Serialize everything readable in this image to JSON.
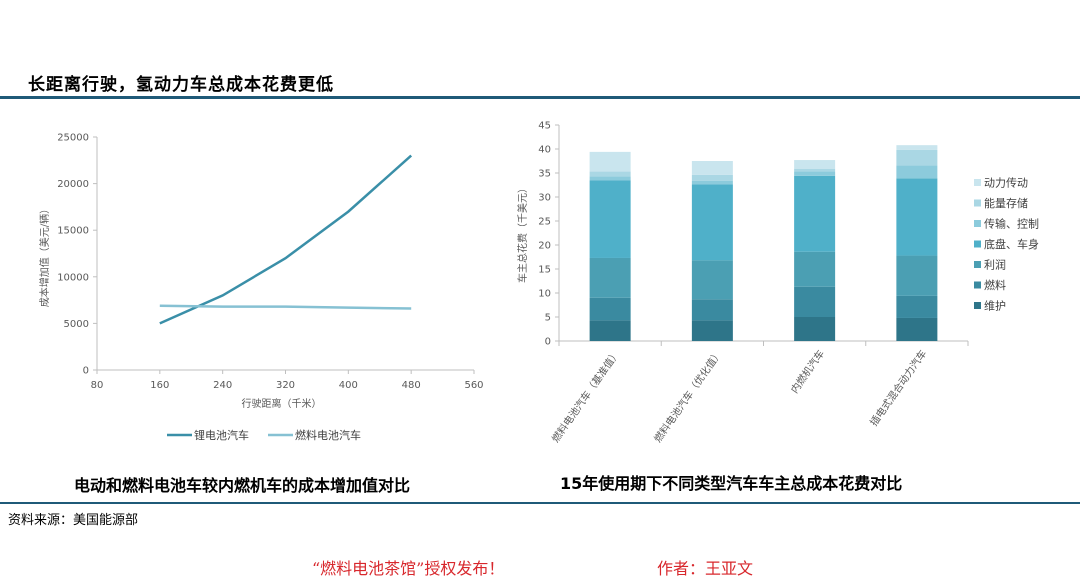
{
  "heading": "长距离行驶，氢动力车总成本花费更低",
  "source": "资料来源：美国能源部",
  "footer": {
    "left": "“燃料电池茶馆”授权发布！",
    "right": "作者：王亚文"
  },
  "chart_data": [
    {
      "type": "line",
      "caption": "电动和燃料电池车较内燃机车的成本增加值对比",
      "xlabel": "行驶距离（千米）",
      "ylabel": "成本增加值（美元/辆）",
      "xlim": [
        80,
        560
      ],
      "ylim": [
        0,
        25000
      ],
      "xticks": [
        80,
        160,
        240,
        320,
        400,
        480,
        560
      ],
      "yticks": [
        0,
        5000,
        10000,
        15000,
        20000,
        25000
      ],
      "grid": false,
      "legend_position": "bottom",
      "series": [
        {
          "name": "锂电池汽车",
          "color": "#3a8fa8",
          "points": [
            [
              160,
              5000
            ],
            [
              240,
              8000
            ],
            [
              320,
              12000
            ],
            [
              400,
              17000
            ],
            [
              480,
              23000
            ]
          ]
        },
        {
          "name": "燃料电池汽车",
          "color": "#86c1d3",
          "points": [
            [
              160,
              6900
            ],
            [
              240,
              6800
            ],
            [
              320,
              6800
            ],
            [
              400,
              6700
            ],
            [
              480,
              6600
            ]
          ]
        }
      ]
    },
    {
      "type": "bar",
      "stacked": true,
      "caption": "15年使用期下不同类型汽车车主总成本花费对比",
      "ylabel": "车主总花费（千美元）",
      "ylim": [
        0,
        45
      ],
      "yticks": [
        0,
        5,
        10,
        15,
        20,
        25,
        30,
        35,
        40,
        45
      ],
      "grid": false,
      "legend_position": "right",
      "categories": [
        "燃料电池汽车（基准值）",
        "燃料电池汽车（优化值）",
        "内燃机汽车",
        "插电式混合动力汽车"
      ],
      "series": [
        {
          "name": "维护",
          "color": "#2e7589",
          "values": [
            4.3,
            4.3,
            5.0,
            4.8
          ]
        },
        {
          "name": "燃料",
          "color": "#3a8aa0",
          "values": [
            4.7,
            4.4,
            6.3,
            4.6
          ]
        },
        {
          "name": "利润",
          "color": "#4b9fb3",
          "values": [
            8.3,
            8.1,
            7.3,
            8.4
          ]
        },
        {
          "name": "底盘、车身",
          "color": "#4fb0c9",
          "values": [
            16.2,
            15.8,
            15.8,
            16.1
          ]
        },
        {
          "name": "传输、控制",
          "color": "#8ccbdc",
          "values": [
            0.8,
            0.8,
            0.9,
            2.7
          ]
        },
        {
          "name": "能量存储",
          "color": "#aad7e4",
          "values": [
            1.0,
            1.2,
            0.6,
            3.2
          ]
        },
        {
          "name": "动力传动",
          "color": "#c9e5ee",
          "values": [
            4.1,
            2.9,
            1.8,
            1.0
          ]
        }
      ]
    }
  ]
}
